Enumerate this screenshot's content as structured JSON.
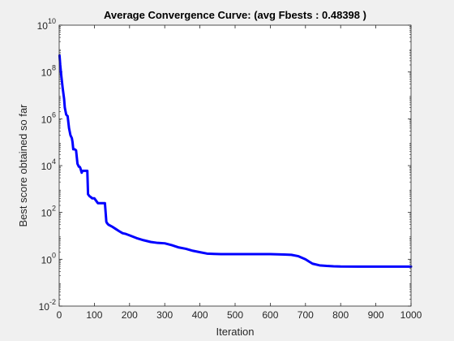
{
  "chart_data": {
    "type": "line",
    "title": "Average Convergence Curve: (avg Fbests : 0.48398 )",
    "xlabel": "Iteration",
    "ylabel": "Best score obtained so far",
    "xlim": [
      0,
      1000
    ],
    "ylim_log10": [
      -2,
      10
    ],
    "yscale": "log",
    "grid": false,
    "line_color": "#0000ff",
    "x_ticks": [
      0,
      100,
      200,
      300,
      400,
      500,
      600,
      700,
      800,
      900,
      1000
    ],
    "y_tick_exponents": [
      -2,
      0,
      2,
      4,
      6,
      8,
      10
    ],
    "y_tick_base": "10",
    "series": [
      {
        "x": [
          1,
          3,
          6,
          10,
          14,
          16,
          20,
          24,
          28,
          32,
          36,
          38,
          40,
          44,
          48,
          52,
          56,
          58,
          60,
          64,
          66,
          70,
          80,
          82,
          86,
          90,
          94,
          100,
          110,
          120,
          130,
          134,
          136,
          140,
          150,
          160,
          170,
          180,
          190,
          200,
          220,
          240,
          260,
          280,
          300,
          320,
          340,
          360,
          380,
          400,
          420,
          440,
          460,
          500,
          550,
          600,
          640,
          660,
          680,
          700,
          710,
          720,
          740,
          760,
          780,
          800,
          850,
          900,
          950,
          1000
        ],
        "y": [
          500000000.0,
          200000000.0,
          70000000.0,
          20000000.0,
          7000000.0,
          3000000.0,
          1500000.0,
          1300000.0,
          400000.0,
          200000.0,
          150000.0,
          100000.0,
          50000.0,
          50000.0,
          45000.0,
          12000.0,
          9000.0,
          9000.0,
          8000.0,
          5000.0,
          6000.0,
          6000.0,
          6000.0,
          600.0,
          500.0,
          450.0,
          400.0,
          400.0,
          250.0,
          250.0,
          250.0,
          40.0,
          35.0,
          30.0,
          25.0,
          20.0,
          16.0,
          13.0,
          12.0,
          10.5,
          8,
          6.5,
          5.5,
          5,
          4.8,
          4,
          3.2,
          2.8,
          2.3,
          2.0,
          1.75,
          1.7,
          1.65,
          1.65,
          1.65,
          1.65,
          1.6,
          1.55,
          1.35,
          1.0,
          0.8,
          0.65,
          0.55,
          0.52,
          0.5,
          0.49,
          0.485,
          0.484,
          0.484,
          0.484
        ]
      }
    ]
  }
}
